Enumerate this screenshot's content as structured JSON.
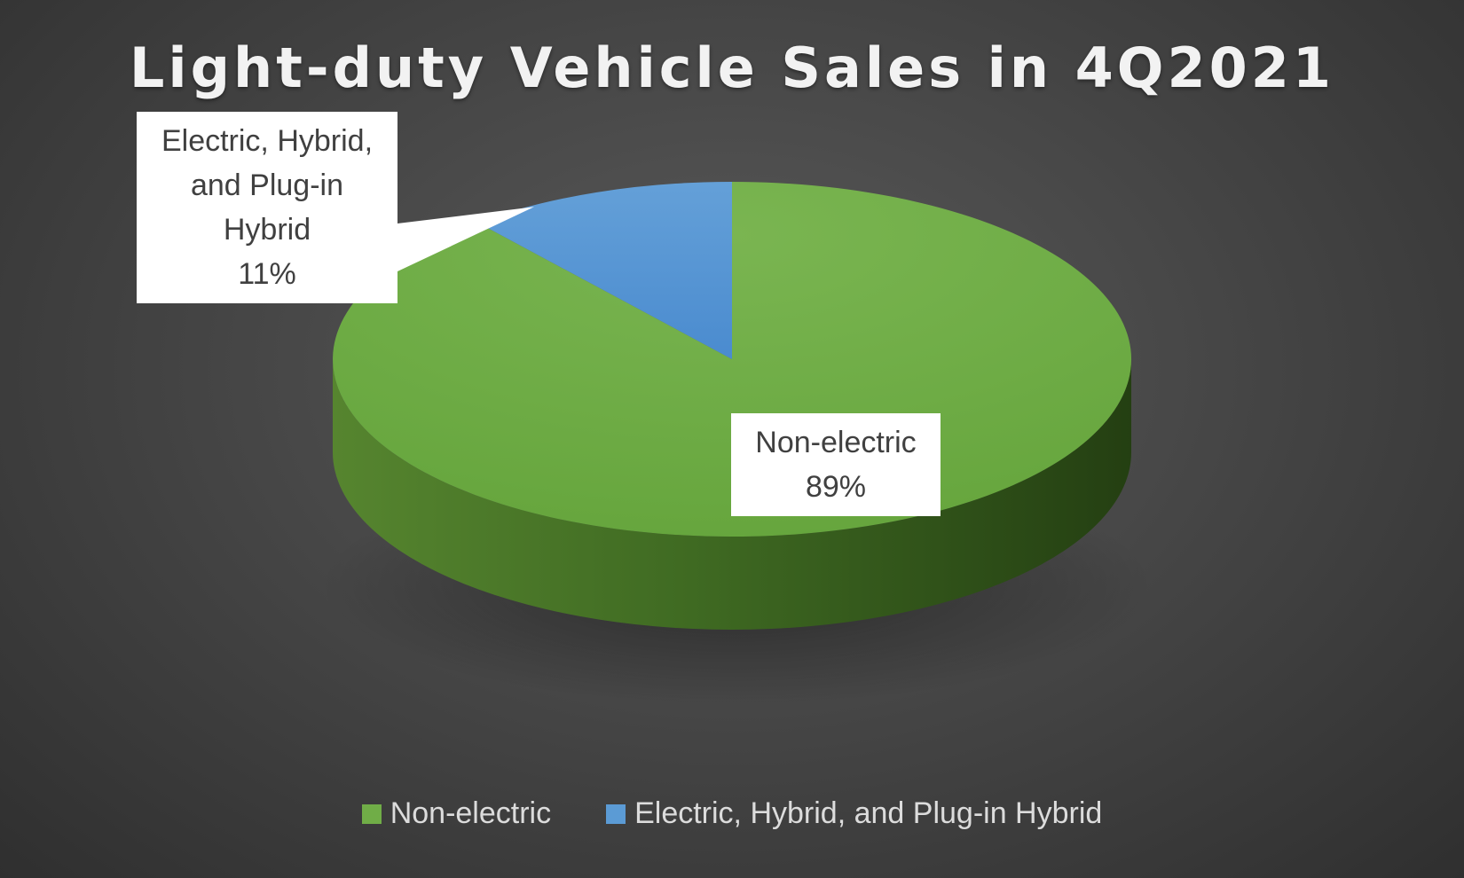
{
  "chart_data": {
    "type": "pie",
    "style": "3d",
    "title": "Light-duty Vehicle Sales in 4Q2021",
    "categories": [
      "Non-electric",
      "Electric, Hybrid, and Plug-in Hybrid"
    ],
    "values": [
      89,
      11
    ],
    "unit": "%",
    "data_labels": [
      {
        "category": "Non-electric",
        "lines": [
          "Non-electric",
          "89%"
        ]
      },
      {
        "category": "Electric, Hybrid, and Plug-in Hybrid",
        "lines": [
          "Electric, Hybrid,",
          "and Plug-in",
          "Hybrid",
          "11%"
        ]
      }
    ],
    "legend": {
      "position": "bottom",
      "entries": [
        "Non-electric",
        "Electric, Hybrid, and Plug-in Hybrid"
      ]
    },
    "colors": {
      "Non-electric": "#70ad47",
      "Electric, Hybrid, and Plug-in Hybrid": "#5b9bd5",
      "background": "#474747",
      "title": "#f2f2f2",
      "legend_text": "#dcdcdc"
    }
  }
}
